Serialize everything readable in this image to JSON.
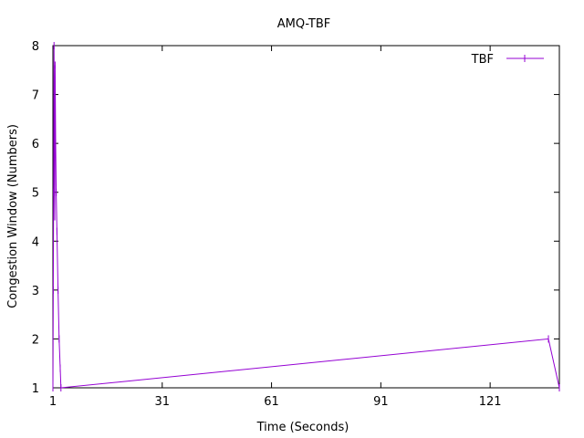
{
  "chart_data": {
    "type": "line",
    "title": "AMQ-TBF",
    "xlabel": "Time (Seconds)",
    "ylabel": "Congestion Window (Numbers)",
    "xlim": [
      1,
      140
    ],
    "ylim": [
      1,
      8
    ],
    "xticks": [
      1,
      31,
      61,
      91,
      121
    ],
    "yticks": [
      1,
      2,
      3,
      4,
      5,
      6,
      7,
      8
    ],
    "grid": false,
    "legend_position": "top-right",
    "series": [
      {
        "name": "TBF",
        "color": "#9400d3",
        "points": [
          [
            1.0,
            1.0
          ],
          [
            1.1,
            3.0
          ],
          [
            1.2,
            5.0
          ],
          [
            1.3,
            8.0
          ],
          [
            1.4,
            6.0
          ],
          [
            1.5,
            4.5
          ],
          [
            1.6,
            7.6
          ],
          [
            1.75,
            6.0
          ],
          [
            1.9,
            5.0
          ],
          [
            2.1,
            4.2
          ],
          [
            2.4,
            3.0
          ],
          [
            2.7,
            2.0
          ],
          [
            3.0,
            1.4
          ],
          [
            3.2,
            1.0
          ],
          [
            137.0,
            2.0
          ],
          [
            140.0,
            1.0
          ]
        ]
      }
    ]
  }
}
